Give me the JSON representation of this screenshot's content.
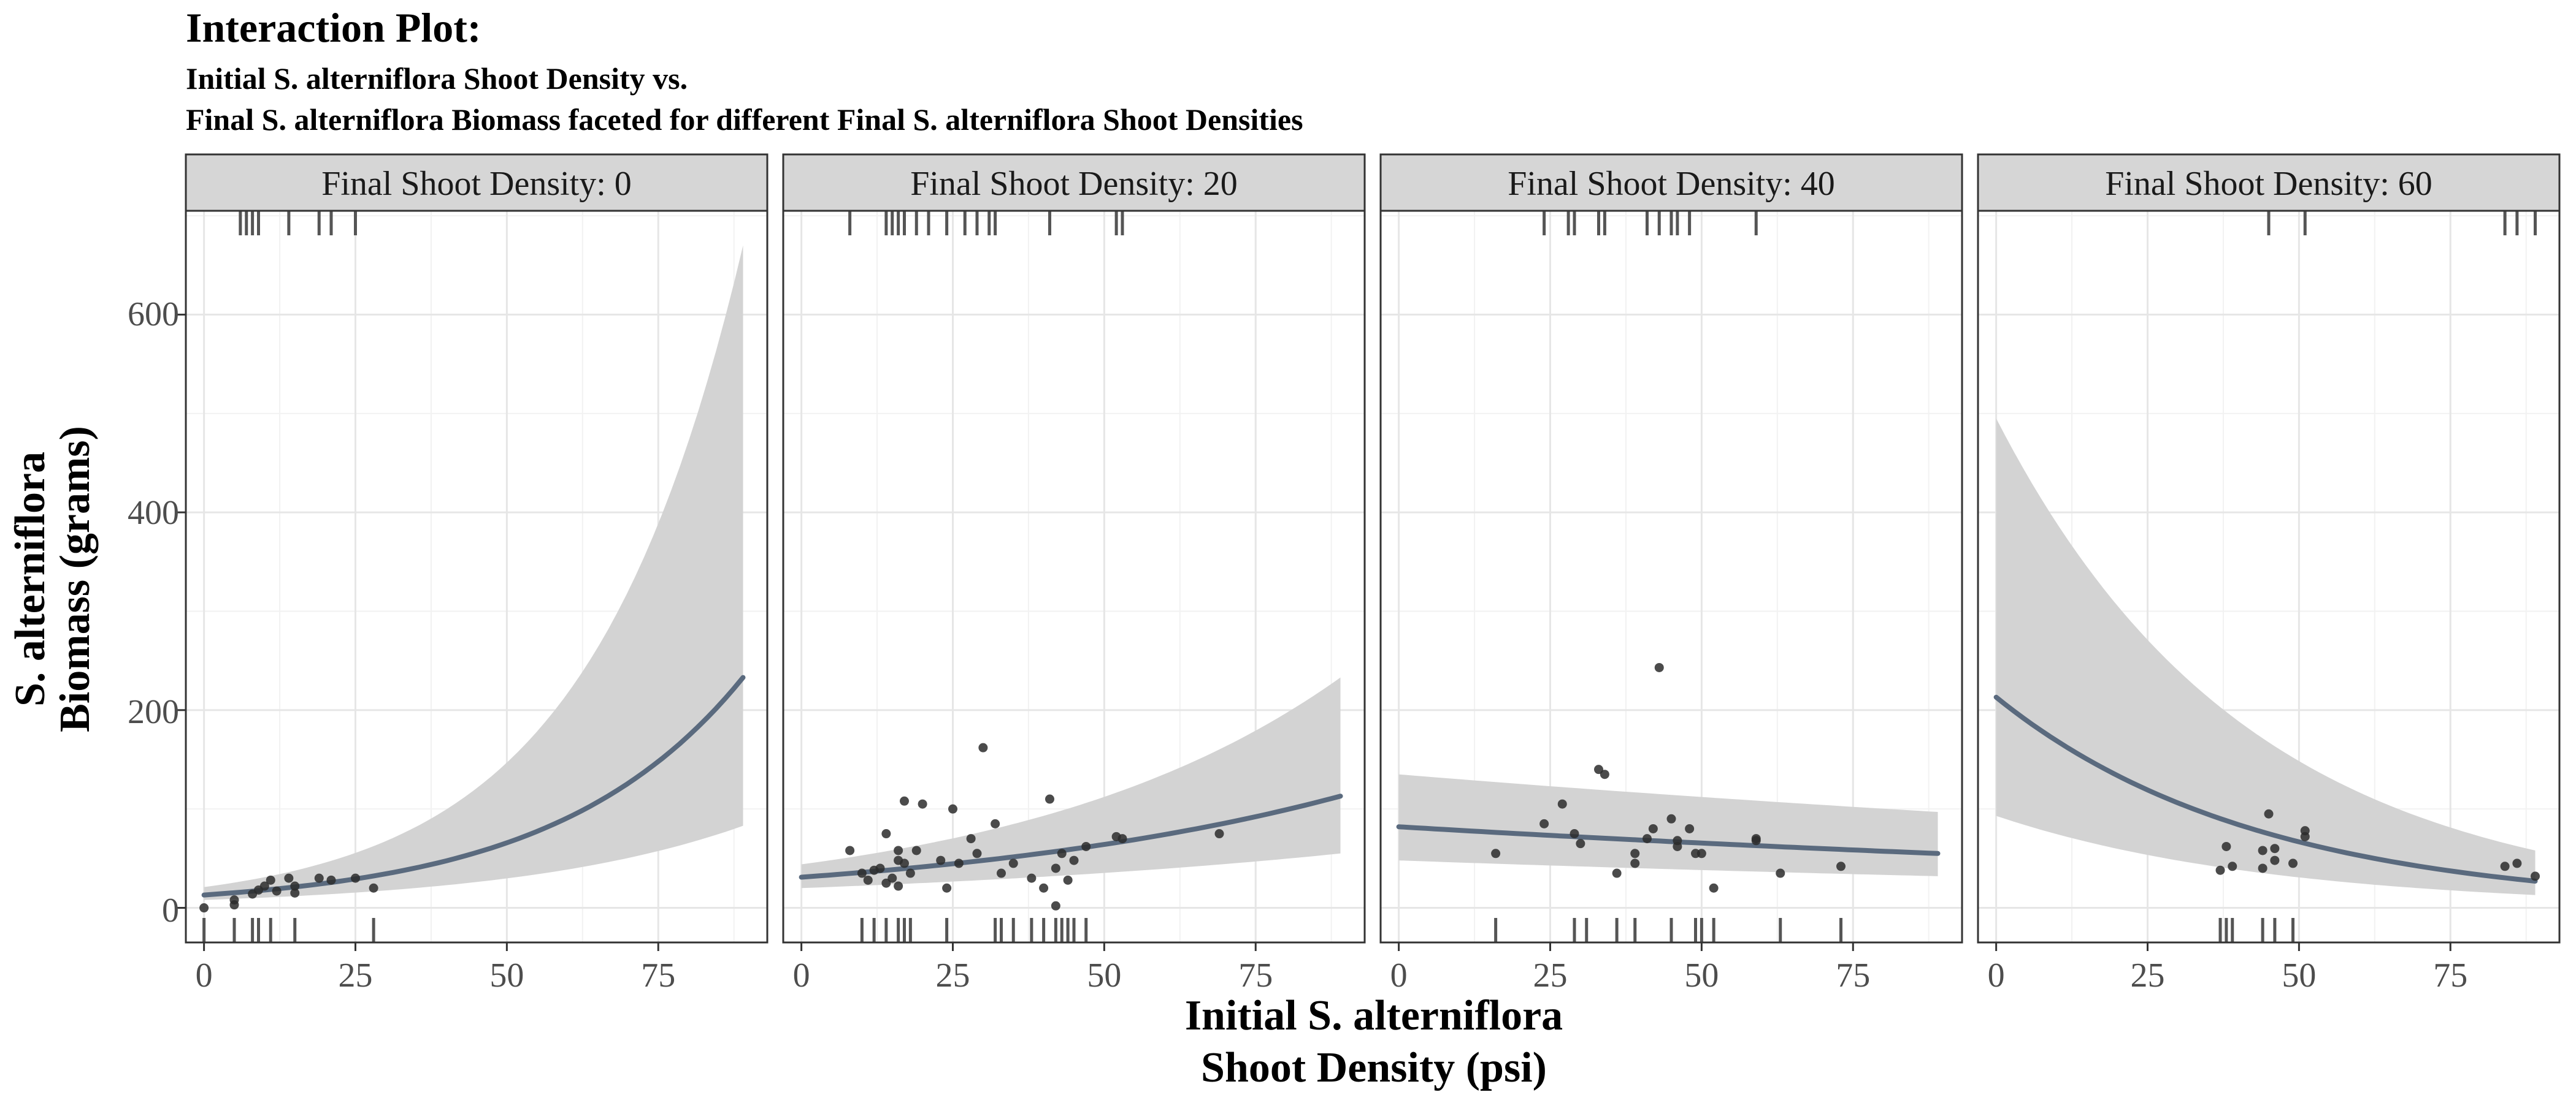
{
  "chart_data": {
    "type": "line",
    "title": "Interaction Plot:",
    "subtitle_lines": [
      "Initial S. alterniflora Shoot Density vs.",
      "Final S. alterniflora Biomass faceted for different Final S. alterniflora Shoot Densities"
    ],
    "xlabel_lines": [
      "Initial S. alterniflora",
      "Shoot Density (psi)"
    ],
    "ylabel_lines": [
      "S. alterniflora",
      "Biomass (grams)"
    ],
    "xlim": [
      -3,
      93
    ],
    "ylim": [
      -35,
      705
    ],
    "x_ticks": [
      0,
      25,
      50,
      75
    ],
    "x_tick_labels": [
      "0",
      "25",
      "50",
      "75"
    ],
    "y_ticks": [
      0,
      200,
      400,
      600
    ],
    "y_tick_labels": [
      "0",
      "200",
      "400",
      "600"
    ],
    "grid": true,
    "line_color": "#5a6a7e",
    "ribbon_color": "#d3d3d3",
    "facets": [
      {
        "label": "Final Shoot Density: 0",
        "fit": {
          "x0": 0,
          "x1": 89,
          "y0": 13,
          "y1": 233,
          "lo0": 8,
          "lo1": 83,
          "hi0": 21,
          "hi1": 670
        },
        "points": [
          [
            0,
            0
          ],
          [
            5,
            3
          ],
          [
            5,
            8
          ],
          [
            8,
            14
          ],
          [
            9,
            18
          ],
          [
            10,
            22
          ],
          [
            11,
            28
          ],
          [
            12,
            17
          ],
          [
            14,
            30
          ],
          [
            15,
            15
          ],
          [
            15,
            22
          ],
          [
            19,
            30
          ],
          [
            21,
            28
          ],
          [
            25,
            30
          ],
          [
            28,
            20
          ]
        ],
        "rug_top": [
          6,
          7,
          8,
          9,
          14,
          19,
          21,
          25
        ],
        "rug_bottom": [
          0,
          5,
          8,
          9,
          11,
          15,
          28
        ]
      },
      {
        "label": "Final Shoot Density: 20",
        "fit": {
          "x0": 0,
          "x1": 89,
          "y0": 31,
          "y1": 113,
          "lo0": 20,
          "lo1": 55,
          "hi0": 44,
          "hi1": 233
        },
        "points": [
          [
            8,
            58
          ],
          [
            10,
            35
          ],
          [
            11,
            28
          ],
          [
            12,
            38
          ],
          [
            13,
            40
          ],
          [
            14,
            75
          ],
          [
            14,
            25
          ],
          [
            15,
            30
          ],
          [
            16,
            58
          ],
          [
            16,
            48
          ],
          [
            16,
            22
          ],
          [
            17,
            108
          ],
          [
            17,
            45
          ],
          [
            18,
            35
          ],
          [
            19,
            58
          ],
          [
            20,
            105
          ],
          [
            23,
            48
          ],
          [
            24,
            20
          ],
          [
            25,
            100
          ],
          [
            26,
            45
          ],
          [
            28,
            70
          ],
          [
            29,
            55
          ],
          [
            30,
            162
          ],
          [
            32,
            85
          ],
          [
            33,
            35
          ],
          [
            35,
            45
          ],
          [
            38,
            30
          ],
          [
            40,
            20
          ],
          [
            41,
            110
          ],
          [
            42,
            40
          ],
          [
            42,
            2
          ],
          [
            43,
            55
          ],
          [
            44,
            28
          ],
          [
            45,
            48
          ],
          [
            47,
            62
          ],
          [
            52,
            72
          ],
          [
            53,
            70
          ],
          [
            69,
            75
          ]
        ],
        "rug_top": [
          8,
          14,
          15,
          16,
          17,
          19,
          21,
          24,
          27,
          29,
          31,
          32,
          41,
          52,
          53
        ],
        "rug_bottom": [
          10,
          12,
          14,
          16,
          17,
          18,
          24,
          32,
          33,
          35,
          38,
          40,
          42,
          43,
          44,
          45,
          47
        ]
      },
      {
        "label": "Final Shoot Density: 40",
        "fit": {
          "x0": 0,
          "x1": 89,
          "y0": 82,
          "y1": 55,
          "lo0": 48,
          "lo1": 32,
          "hi0": 135,
          "hi1": 97
        },
        "points": [
          [
            16,
            55
          ],
          [
            24,
            85
          ],
          [
            27,
            105
          ],
          [
            29,
            75
          ],
          [
            30,
            65
          ],
          [
            33,
            140
          ],
          [
            34,
            135
          ],
          [
            36,
            35
          ],
          [
            39,
            55
          ],
          [
            39,
            45
          ],
          [
            41,
            70
          ],
          [
            42,
            80
          ],
          [
            43,
            243
          ],
          [
            45,
            90
          ],
          [
            46,
            68
          ],
          [
            46,
            62
          ],
          [
            48,
            80
          ],
          [
            49,
            55
          ],
          [
            50,
            55
          ],
          [
            52,
            20
          ],
          [
            59,
            70
          ],
          [
            59,
            68
          ],
          [
            63,
            35
          ],
          [
            73,
            42
          ]
        ],
        "rug_top": [
          24,
          28,
          29,
          33,
          34,
          41,
          43,
          45,
          46,
          48,
          59
        ],
        "rug_bottom": [
          16,
          29,
          31,
          36,
          39,
          45,
          49,
          50,
          52,
          63,
          73
        ]
      },
      {
        "label": "Final Shoot Density: 60",
        "fit": {
          "x0": 0,
          "x1": 89,
          "y0": 213,
          "y1": 27,
          "lo0": 93,
          "lo1": 13,
          "hi0": 495,
          "hi1": 58
        },
        "points": [
          [
            37,
            38
          ],
          [
            38,
            62
          ],
          [
            39,
            42
          ],
          [
            44,
            58
          ],
          [
            44,
            40
          ],
          [
            45,
            95
          ],
          [
            46,
            60
          ],
          [
            46,
            48
          ],
          [
            49,
            45
          ],
          [
            51,
            78
          ],
          [
            51,
            72
          ],
          [
            84,
            42
          ],
          [
            86,
            45
          ],
          [
            89,
            32
          ]
        ],
        "rug_top": [
          45,
          51,
          84,
          86,
          89
        ],
        "rug_bottom": [
          37,
          38,
          39,
          44,
          46,
          49
        ]
      }
    ]
  }
}
